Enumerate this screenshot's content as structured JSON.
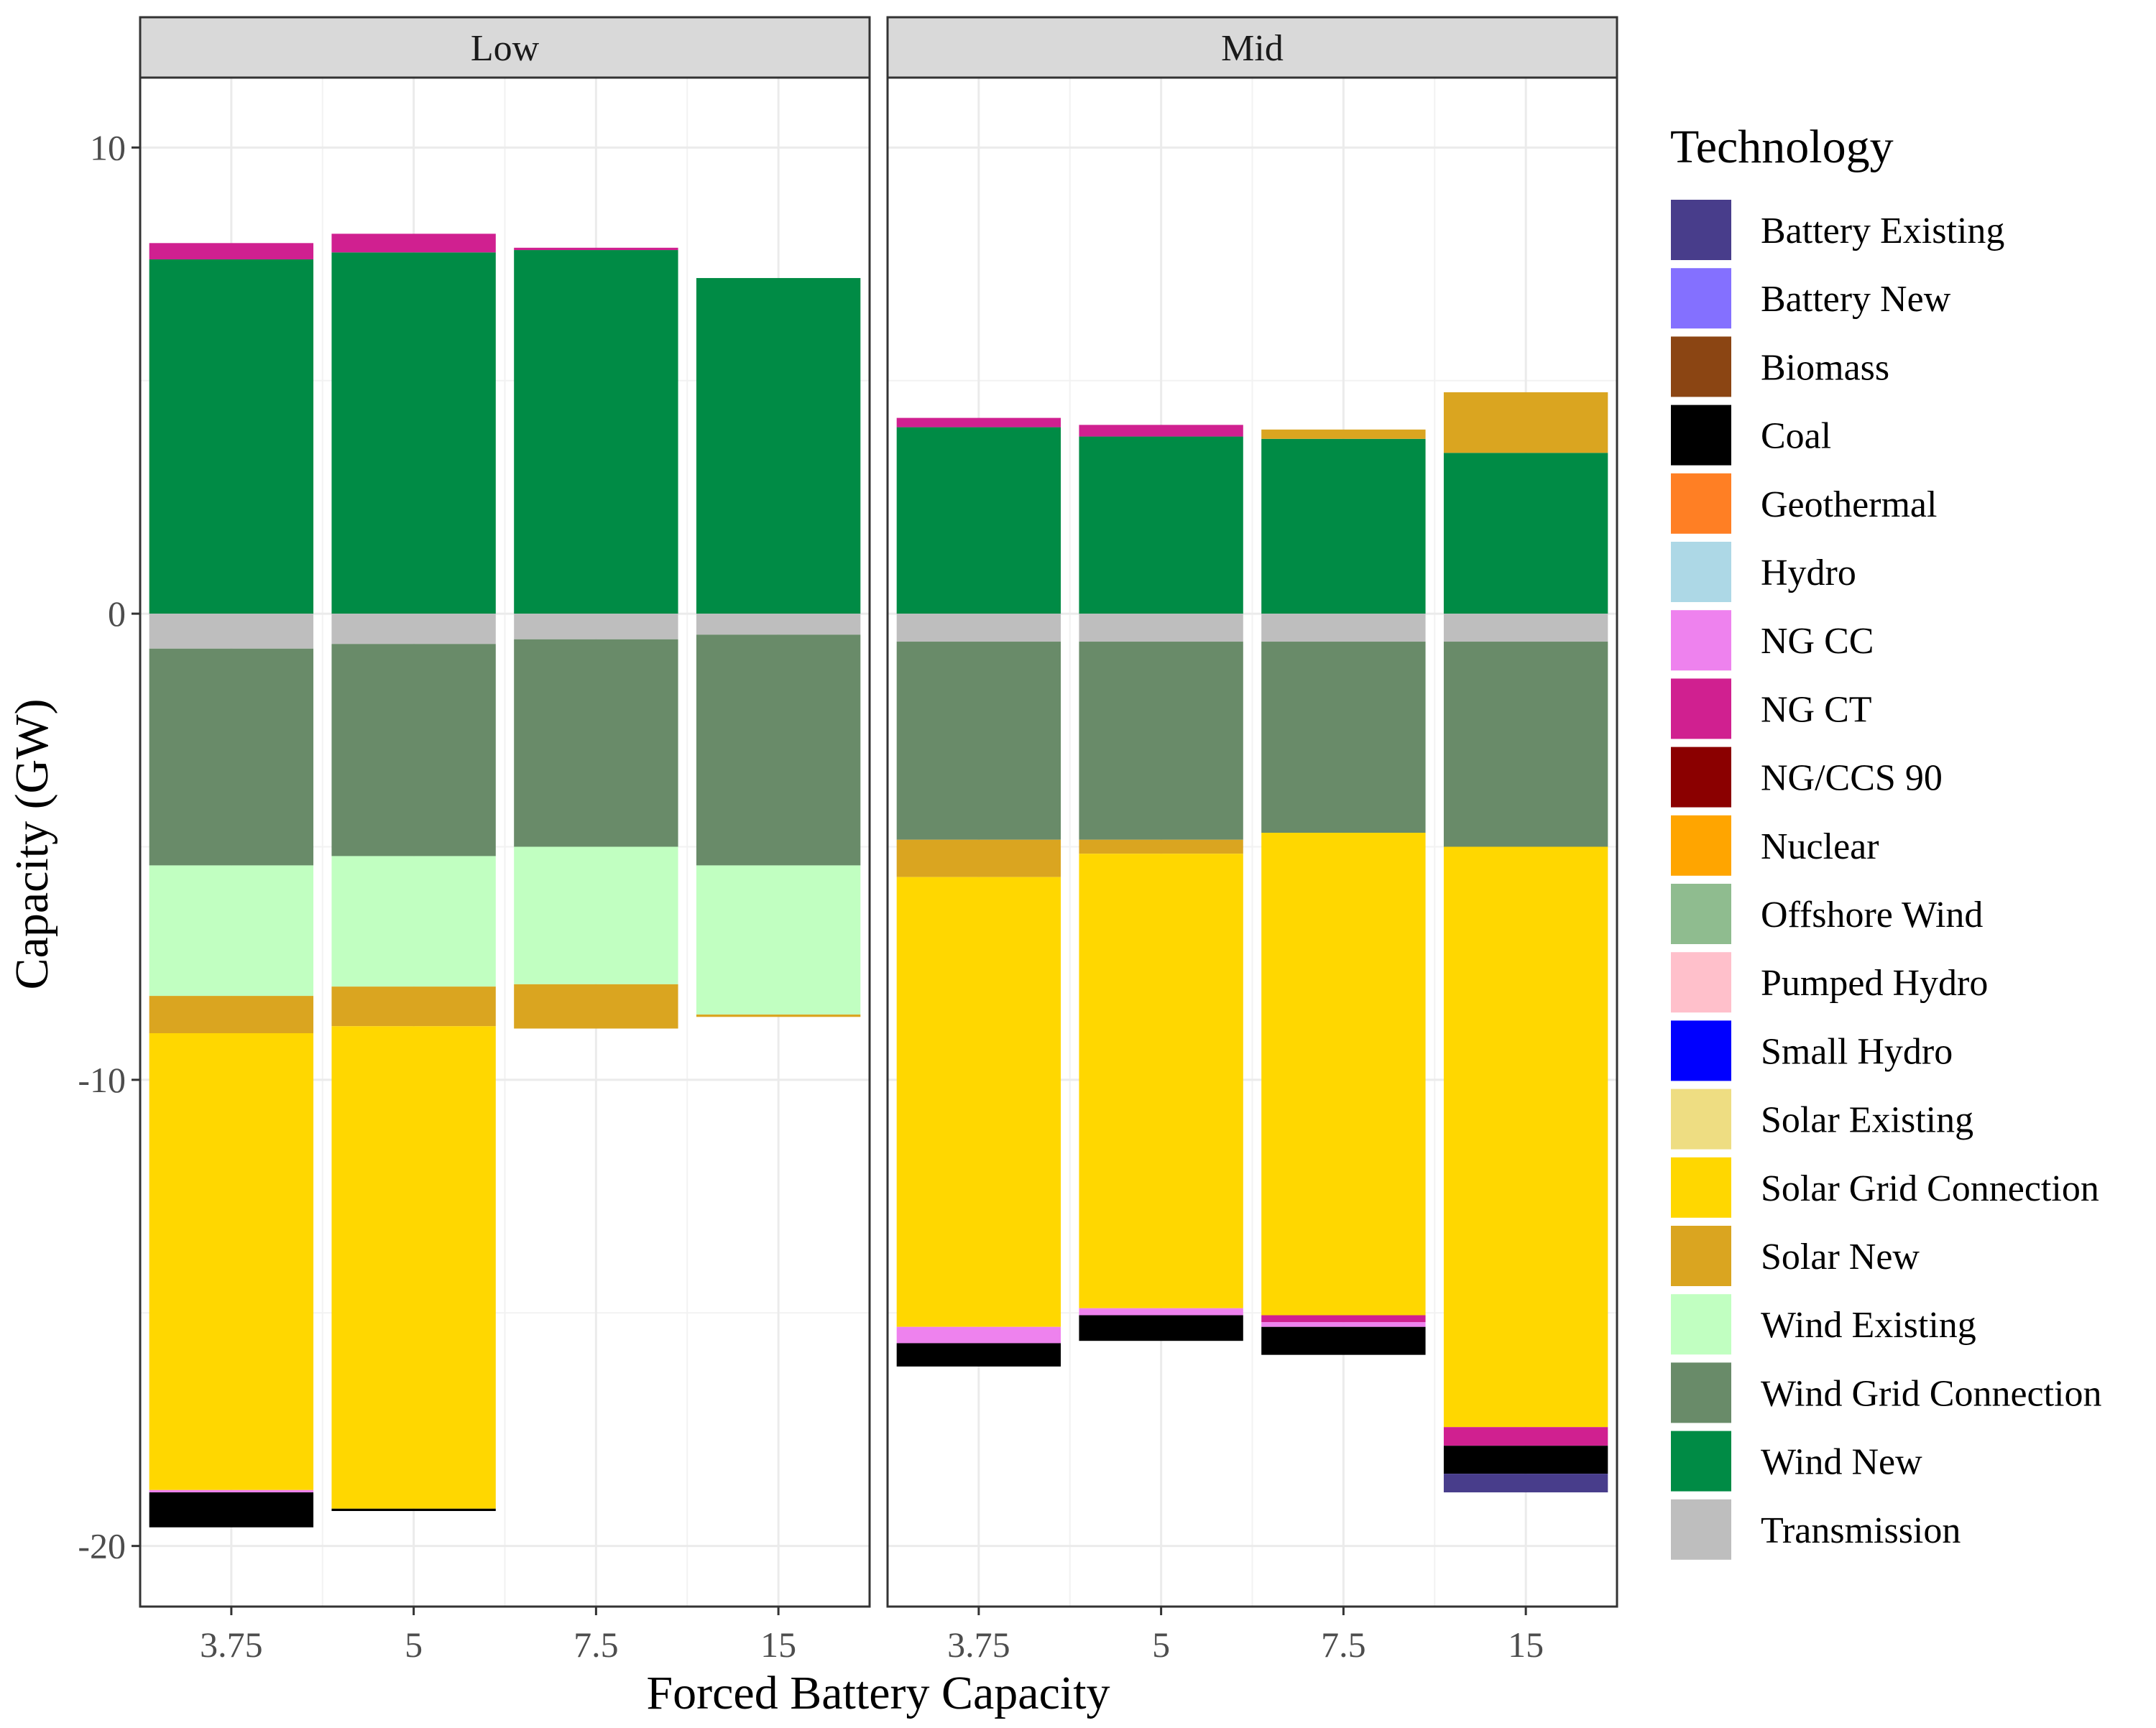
{
  "chart_data": {
    "type": "bar",
    "stacked": "diverging",
    "xlabel": "Forced Battery Capacity",
    "ylabel": "Capacity (GW)",
    "ylim": [
      -21.3,
      11.5
    ],
    "yticks": [
      10,
      0,
      -10,
      -20
    ],
    "ytick_labels": [
      "10",
      "0",
      "-10",
      "-20"
    ],
    "categories": [
      "3.75",
      "5",
      "7.5",
      "15"
    ],
    "legend_title": "Technology",
    "legend_position": "right",
    "technologies": [
      {
        "name": "Battery Existing",
        "color": "#483D8B"
      },
      {
        "name": "Battery New",
        "color": "#8470FF"
      },
      {
        "name": "Biomass",
        "color": "#8B4513"
      },
      {
        "name": "Coal",
        "color": "#000000"
      },
      {
        "name": "Geothermal",
        "color": "#FF7F24"
      },
      {
        "name": "Hydro",
        "color": "#ADD8E6"
      },
      {
        "name": "NG CC",
        "color": "#EE82EE"
      },
      {
        "name": "NG CT",
        "color": "#D02090"
      },
      {
        "name": "NG/CCS 90",
        "color": "#8B0000"
      },
      {
        "name": "Nuclear",
        "color": "#FFA500"
      },
      {
        "name": "Offshore Wind",
        "color": "#8FBC8F"
      },
      {
        "name": "Pumped Hydro",
        "color": "#FFC0CB"
      },
      {
        "name": "Small Hydro",
        "color": "#0000FF"
      },
      {
        "name": "Solar Existing",
        "color": "#EEDD82"
      },
      {
        "name": "Solar Grid Connection",
        "color": "#FFD700"
      },
      {
        "name": "Solar New",
        "color": "#DAA520"
      },
      {
        "name": "Wind Existing",
        "color": "#C1FFC1"
      },
      {
        "name": "Wind Grid Connection",
        "color": "#698B69"
      },
      {
        "name": "Wind New",
        "color": "#008B45"
      },
      {
        "name": "Transmission",
        "color": "#BEBEBE"
      }
    ],
    "panels": [
      {
        "name": "Low",
        "bars": [
          {
            "category": "3.75",
            "positive": [
              {
                "tech": "Wind New",
                "value": 7.6
              },
              {
                "tech": "NG CT",
                "value": 0.35
              }
            ],
            "negative": [
              {
                "tech": "Transmission",
                "value": -0.75
              },
              {
                "tech": "Wind Grid Connection",
                "value": -4.65
              },
              {
                "tech": "Wind Existing",
                "value": -2.8
              },
              {
                "tech": "Solar New",
                "value": -0.8
              },
              {
                "tech": "Solar Grid Connection",
                "value": -9.8
              },
              {
                "tech": "NG CC",
                "value": -0.05
              },
              {
                "tech": "Coal",
                "value": -0.75
              }
            ]
          },
          {
            "category": "5",
            "positive": [
              {
                "tech": "Wind New",
                "value": 7.75
              },
              {
                "tech": "NG CT",
                "value": 0.4
              }
            ],
            "negative": [
              {
                "tech": "Transmission",
                "value": -0.65
              },
              {
                "tech": "Wind Grid Connection",
                "value": -4.55
              },
              {
                "tech": "Wind Existing",
                "value": -2.8
              },
              {
                "tech": "Solar New",
                "value": -0.85
              },
              {
                "tech": "Solar Grid Connection",
                "value": -10.35
              },
              {
                "tech": "Coal",
                "value": -0.05
              }
            ]
          },
          {
            "category": "7.5",
            "positive": [
              {
                "tech": "Wind New",
                "value": 7.8
              },
              {
                "tech": "NG CT",
                "value": 0.05
              }
            ],
            "negative": [
              {
                "tech": "Transmission",
                "value": -0.55
              },
              {
                "tech": "Wind Grid Connection",
                "value": -4.45
              },
              {
                "tech": "Wind Existing",
                "value": -2.95
              },
              {
                "tech": "Solar New",
                "value": -0.95
              }
            ]
          },
          {
            "category": "15",
            "positive": [
              {
                "tech": "Wind New",
                "value": 7.2
              }
            ],
            "negative": [
              {
                "tech": "Transmission",
                "value": -0.45
              },
              {
                "tech": "Wind Grid Connection",
                "value": -4.95
              },
              {
                "tech": "Wind Existing",
                "value": -3.2
              },
              {
                "tech": "Solar New",
                "value": -0.05
              }
            ]
          }
        ]
      },
      {
        "name": "Mid",
        "bars": [
          {
            "category": "3.75",
            "positive": [
              {
                "tech": "Wind New",
                "value": 4.0
              },
              {
                "tech": "NG CT",
                "value": 0.2
              }
            ],
            "negative": [
              {
                "tech": "Transmission",
                "value": -0.6
              },
              {
                "tech": "Wind Grid Connection",
                "value": -4.25
              },
              {
                "tech": "Solar New",
                "value": -0.8
              },
              {
                "tech": "Solar Grid Connection",
                "value": -9.65
              },
              {
                "tech": "NG CC",
                "value": -0.35
              },
              {
                "tech": "Coal",
                "value": -0.5
              }
            ]
          },
          {
            "category": "5",
            "positive": [
              {
                "tech": "Wind New",
                "value": 3.8
              },
              {
                "tech": "NG CT",
                "value": 0.25
              }
            ],
            "negative": [
              {
                "tech": "Transmission",
                "value": -0.6
              },
              {
                "tech": "Wind Grid Connection",
                "value": -4.25
              },
              {
                "tech": "Solar New",
                "value": -0.3
              },
              {
                "tech": "Solar Grid Connection",
                "value": -9.75
              },
              {
                "tech": "NG CC",
                "value": -0.15
              },
              {
                "tech": "Coal",
                "value": -0.55
              }
            ]
          },
          {
            "category": "7.5",
            "positive": [
              {
                "tech": "Wind New",
                "value": 3.75
              },
              {
                "tech": "Solar New",
                "value": 0.2
              }
            ],
            "negative": [
              {
                "tech": "Transmission",
                "value": -0.6
              },
              {
                "tech": "Wind Grid Connection",
                "value": -4.1
              },
              {
                "tech": "Solar Grid Connection",
                "value": -10.35
              },
              {
                "tech": "NG CT",
                "value": -0.15
              },
              {
                "tech": "NG CC",
                "value": -0.1
              },
              {
                "tech": "Coal",
                "value": -0.6
              }
            ]
          },
          {
            "category": "15",
            "positive": [
              {
                "tech": "Wind New",
                "value": 3.45
              },
              {
                "tech": "Solar New",
                "value": 1.3
              }
            ],
            "negative": [
              {
                "tech": "Transmission",
                "value": -0.6
              },
              {
                "tech": "Wind Grid Connection",
                "value": -4.4
              },
              {
                "tech": "Solar Grid Connection",
                "value": -12.45
              },
              {
                "tech": "NG CT",
                "value": -0.4
              },
              {
                "tech": "Coal",
                "value": -0.6
              },
              {
                "tech": "Battery Existing",
                "value": -0.4
              }
            ]
          }
        ]
      }
    ]
  }
}
